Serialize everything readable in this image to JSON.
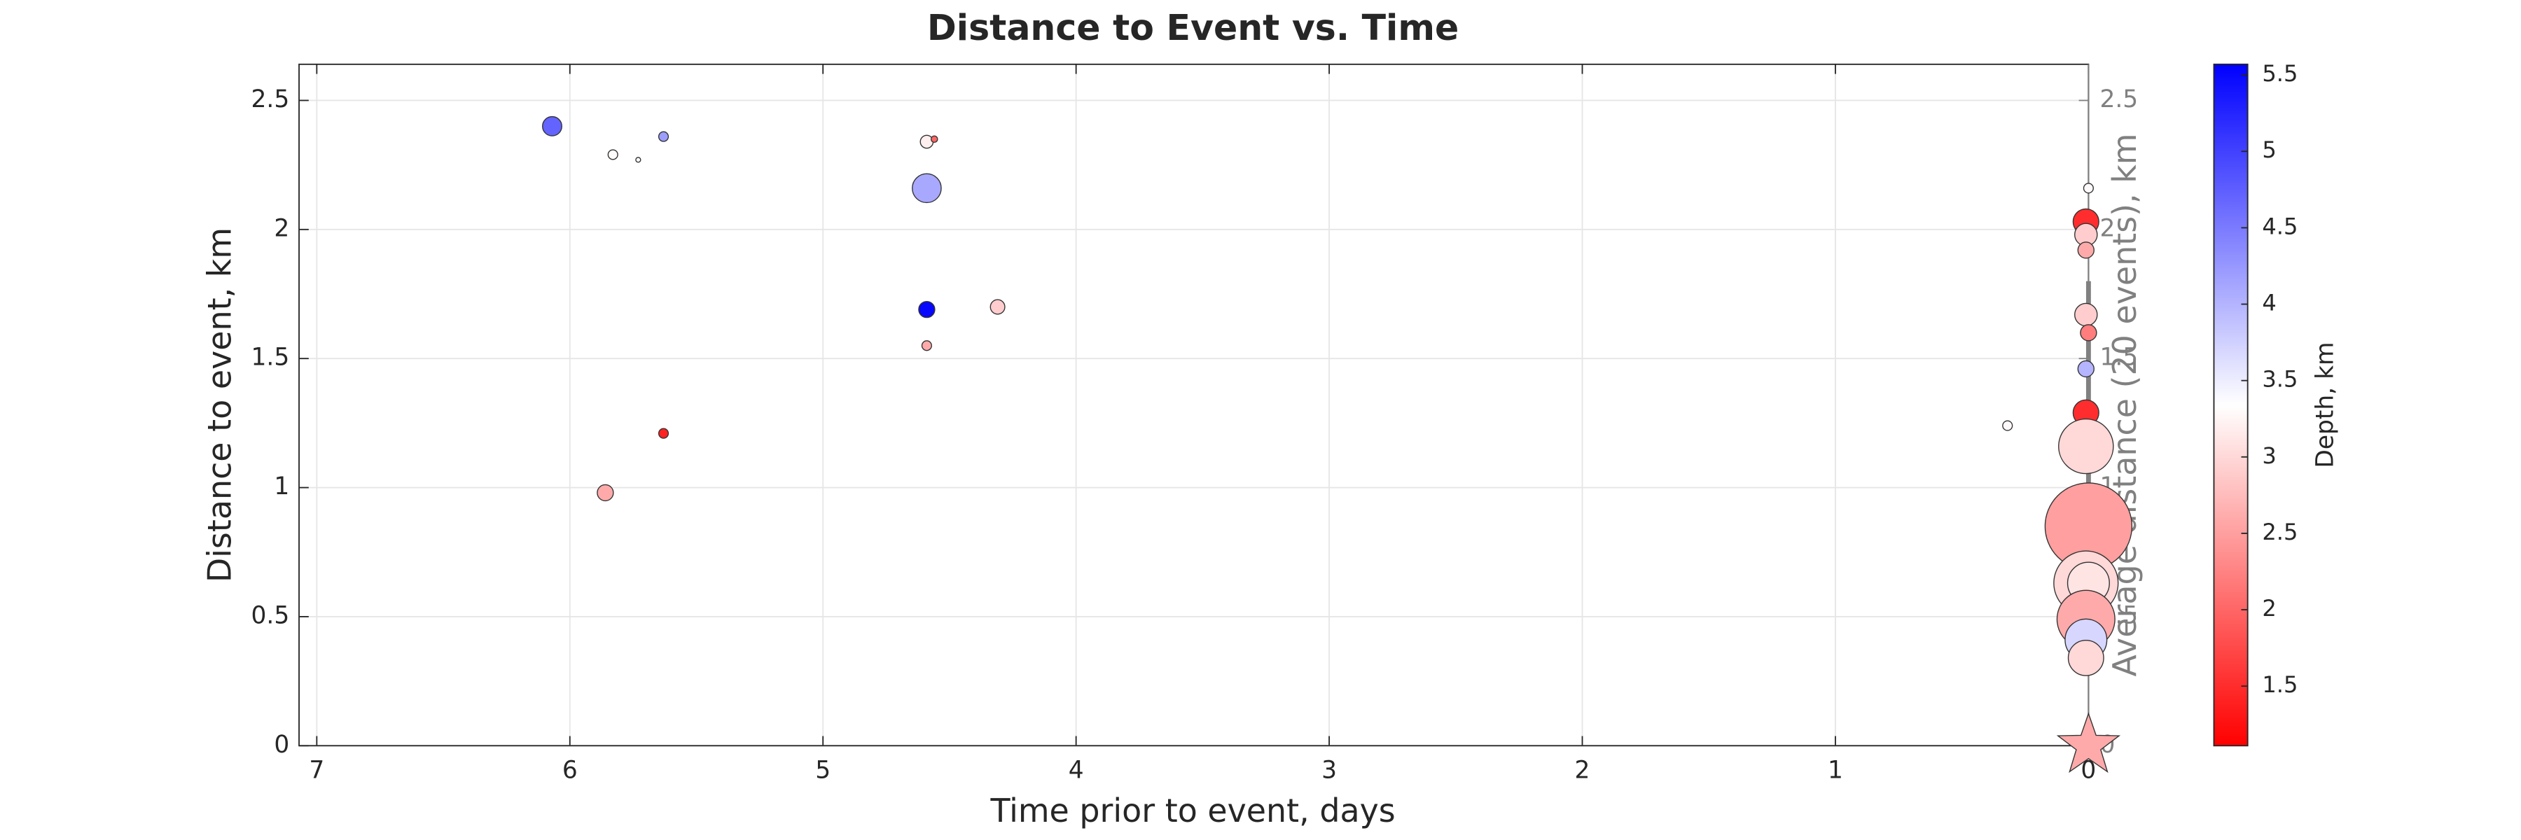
{
  "chart_data": {
    "type": "scatter",
    "title": "Distance to Event vs. Time",
    "x_label": "Time prior to event, days",
    "y_label": "Distance to event, km",
    "y2_label": "Average distance (20 events), km",
    "colorbar_label": "Depth, km",
    "x_reversed": true,
    "xlim": [
      0,
      7.07
    ],
    "xticks": [
      0,
      1,
      2,
      3,
      4,
      5,
      6,
      7
    ],
    "ylim": [
      0,
      2.64
    ],
    "yticks": [
      0,
      0.5,
      1,
      1.5,
      2,
      2.5
    ],
    "y2lim": [
      0,
      2.64
    ],
    "y2ticks": [
      0,
      0.5,
      1,
      1.5,
      2,
      2.5
    ],
    "grid": true,
    "clim": [
      1.11,
      5.57
    ],
    "cticks": [
      1.5,
      2,
      2.5,
      3,
      3.5,
      4,
      4.5,
      5,
      5.5
    ],
    "colormap": [
      "#ff0000",
      "#ffffff",
      "#0000ff"
    ],
    "x": [
      6.07,
      5.83,
      5.73,
      5.63,
      5.86,
      5.63,
      4.59,
      4.56,
      4.59,
      4.59,
      4.59,
      4.31,
      0.32,
      0,
      0.01,
      0.01,
      0.01,
      0.01,
      0,
      0.01,
      0.01,
      0.01,
      0,
      0.01,
      0,
      0.01,
      0.01,
      0.01
    ],
    "values": [
      2.4,
      2.29,
      2.27,
      2.36,
      0.98,
      1.21,
      2.34,
      2.35,
      2.16,
      1.69,
      1.55,
      1.7,
      1.24,
      2.16,
      2.03,
      1.98,
      1.92,
      1.67,
      1.6,
      1.46,
      1.29,
      1.16,
      0.85,
      0.63,
      0.63,
      0.49,
      0.41,
      0.34
    ],
    "sizes": [
      6,
      3,
      1.5,
      3,
      5,
      3,
      4,
      2,
      9,
      5,
      3,
      4.5,
      3,
      3,
      8,
      7,
      5,
      7,
      5,
      5,
      8,
      17,
      27,
      20,
      13,
      18,
      13,
      11
    ],
    "depths": [
      4.7,
      3.3,
      3.3,
      4.2,
      2.6,
      1.4,
      3.2,
      2.0,
      4.1,
      5.5,
      2.6,
      2.9,
      3.3,
      3.3,
      1.5,
      2.9,
      2.6,
      2.9,
      2.2,
      4.0,
      1.5,
      3.0,
      2.5,
      3.0,
      3.1,
      2.6,
      3.7,
      3.0
    ],
    "event": {
      "x": 0,
      "y": 0,
      "size": 20,
      "depth": 2.6,
      "marker": "star"
    },
    "average": {
      "x": [
        0,
        0
      ],
      "values": [
        1.8,
        0.87
      ],
      "axis": "y2",
      "color": "#808080"
    }
  }
}
